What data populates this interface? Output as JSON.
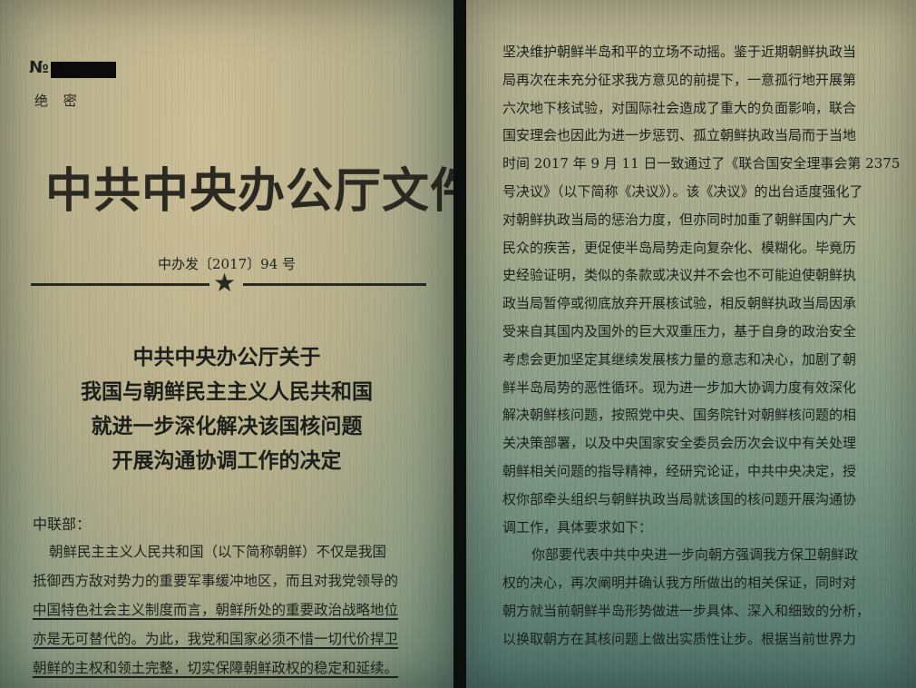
{
  "left_page": {
    "serial_label": "№",
    "classification": "绝 密",
    "header_title": "中共中央办公厅文件",
    "doc_number": "中办发〔2017〕94 号",
    "star": "★",
    "title_lines": [
      "中共中央办公厅关于",
      "我国与朝鲜民主主义人民共和国",
      "就进一步深化解决该国核问题",
      "开展沟通协调工作的决定"
    ],
    "salutation": "中联部：",
    "body_lines": [
      "朝鲜民主主义人民共和国（以下简称朝鲜）不仅是我国",
      "抵御西方敌对势力的重要军事缓冲地区，而且对我党领导的",
      "中国特色社会主义制度而言，朝鲜所处的重要政治战略地位",
      "亦是无可替代的。为此，我党和国家必须不惜一切代价捍卫",
      "朝鲜的主权和领土完整，切实保障朝鲜政权的稳定和延续。"
    ]
  },
  "right_page": {
    "lines": [
      "坚决维护朝鲜半岛和平的立场不动摇。鉴于近期朝鲜执政当",
      "局再次在未充分征求我方意见的前提下，一意孤行地开展第",
      "六次地下核试验，对国际社会造成了重大的负面影响，联合",
      "国安理会也因此为进一步惩罚、孤立朝鲜执政当局而于当地",
      "时间 2017 年 9 月 11 日一致通过了《联合国安全理事会第 2375",
      "号决议》（以下简称《决议》）。该《决议》的出台适度强化了",
      "对朝鲜执政当局的惩治力度，但亦同时加重了朝鲜国内广大",
      "民众的疾苦，更促使半岛局势走向复杂化、模糊化。毕竟历",
      "史经验证明，类似的条款或决议并不会也不可能迫使朝鲜执",
      "政当局暂停或彻底放弃开展核试验，相反朝鲜执政当局因承",
      "受来自其国内及国外的巨大双重压力，基于自身的政治安全",
      "考虑会更加坚定其继续发展核力量的意志和决心，加剧了朝",
      "鲜半岛局势的恶性循环。现为进一步加大协调力度有效深化",
      "解决朝鲜核问题，按照党中央、国务院针对朝鲜核问题的相",
      "关决策部署，以及中央国家安全委员会历次会议中有关处理",
      "朝鲜相关问题的指导精神，经研究论证，中共中央决定，授",
      "权你部牵头组织与朝鲜执政当局就该国的核问题开展沟通协",
      "调工作，具体要求如下：",
      "你部要代表中共中央进一步向朝方强调我方保卫朝鲜政",
      "权的决心，再次阐明并确认我方所做出的相关保证，同时对",
      "朝方就当前朝鲜半岛形势做进一步具体、深入和细致的分析，",
      "以换取朝方在其核问题上做出实质性让步。根据当前世界力"
    ]
  }
}
